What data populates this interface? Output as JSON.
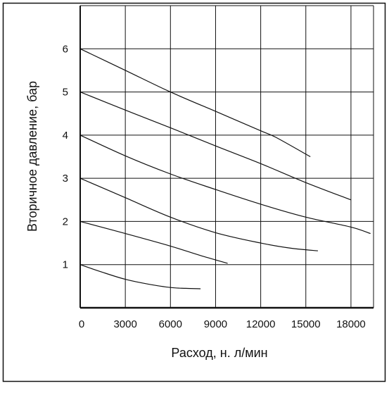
{
  "chart_data": {
    "type": "line",
    "xlabel": "Расход, н. л/мин",
    "ylabel": "Вторичное давление, бар",
    "xlim": [
      0,
      19500
    ],
    "ylim": [
      0,
      7
    ],
    "x_ticks": [
      0,
      3000,
      6000,
      9000,
      12000,
      15000,
      18000
    ],
    "x_tick_labels": [
      "0",
      "3000",
      "6000",
      "9000",
      "12000",
      "15000",
      "18000"
    ],
    "y_ticks": [
      1,
      2,
      3,
      4,
      5,
      6
    ],
    "y_tick_labels": [
      "1",
      "2",
      "3",
      "4",
      "5",
      "6"
    ],
    "grid": true,
    "series": [
      {
        "points": [
          [
            0,
            1.0
          ],
          [
            1500,
            0.82
          ],
          [
            3000,
            0.66
          ],
          [
            4500,
            0.55
          ],
          [
            6000,
            0.47
          ],
          [
            7000,
            0.45
          ],
          [
            8000,
            0.44
          ]
        ]
      },
      {
        "points": [
          [
            0,
            2.0
          ],
          [
            3000,
            1.72
          ],
          [
            6000,
            1.43
          ],
          [
            8000,
            1.21
          ],
          [
            9800,
            1.03
          ]
        ]
      },
      {
        "points": [
          [
            0,
            3.0
          ],
          [
            3000,
            2.55
          ],
          [
            6000,
            2.1
          ],
          [
            9000,
            1.74
          ],
          [
            12000,
            1.5
          ],
          [
            14000,
            1.38
          ],
          [
            15800,
            1.32
          ]
        ]
      },
      {
        "points": [
          [
            0,
            4.0
          ],
          [
            3000,
            3.52
          ],
          [
            6000,
            3.1
          ],
          [
            9000,
            2.74
          ],
          [
            12000,
            2.4
          ],
          [
            15000,
            2.1
          ],
          [
            18000,
            1.87
          ],
          [
            19300,
            1.72
          ]
        ]
      },
      {
        "points": [
          [
            0,
            5.0
          ],
          [
            3000,
            4.58
          ],
          [
            6000,
            4.17
          ],
          [
            9000,
            3.75
          ],
          [
            12000,
            3.34
          ],
          [
            15000,
            2.9
          ],
          [
            18000,
            2.5
          ]
        ]
      },
      {
        "points": [
          [
            0,
            6.0
          ],
          [
            3000,
            5.5
          ],
          [
            6000,
            5.0
          ],
          [
            9000,
            4.55
          ],
          [
            12000,
            4.1
          ],
          [
            13000,
            3.95
          ],
          [
            15300,
            3.5
          ]
        ]
      }
    ]
  }
}
